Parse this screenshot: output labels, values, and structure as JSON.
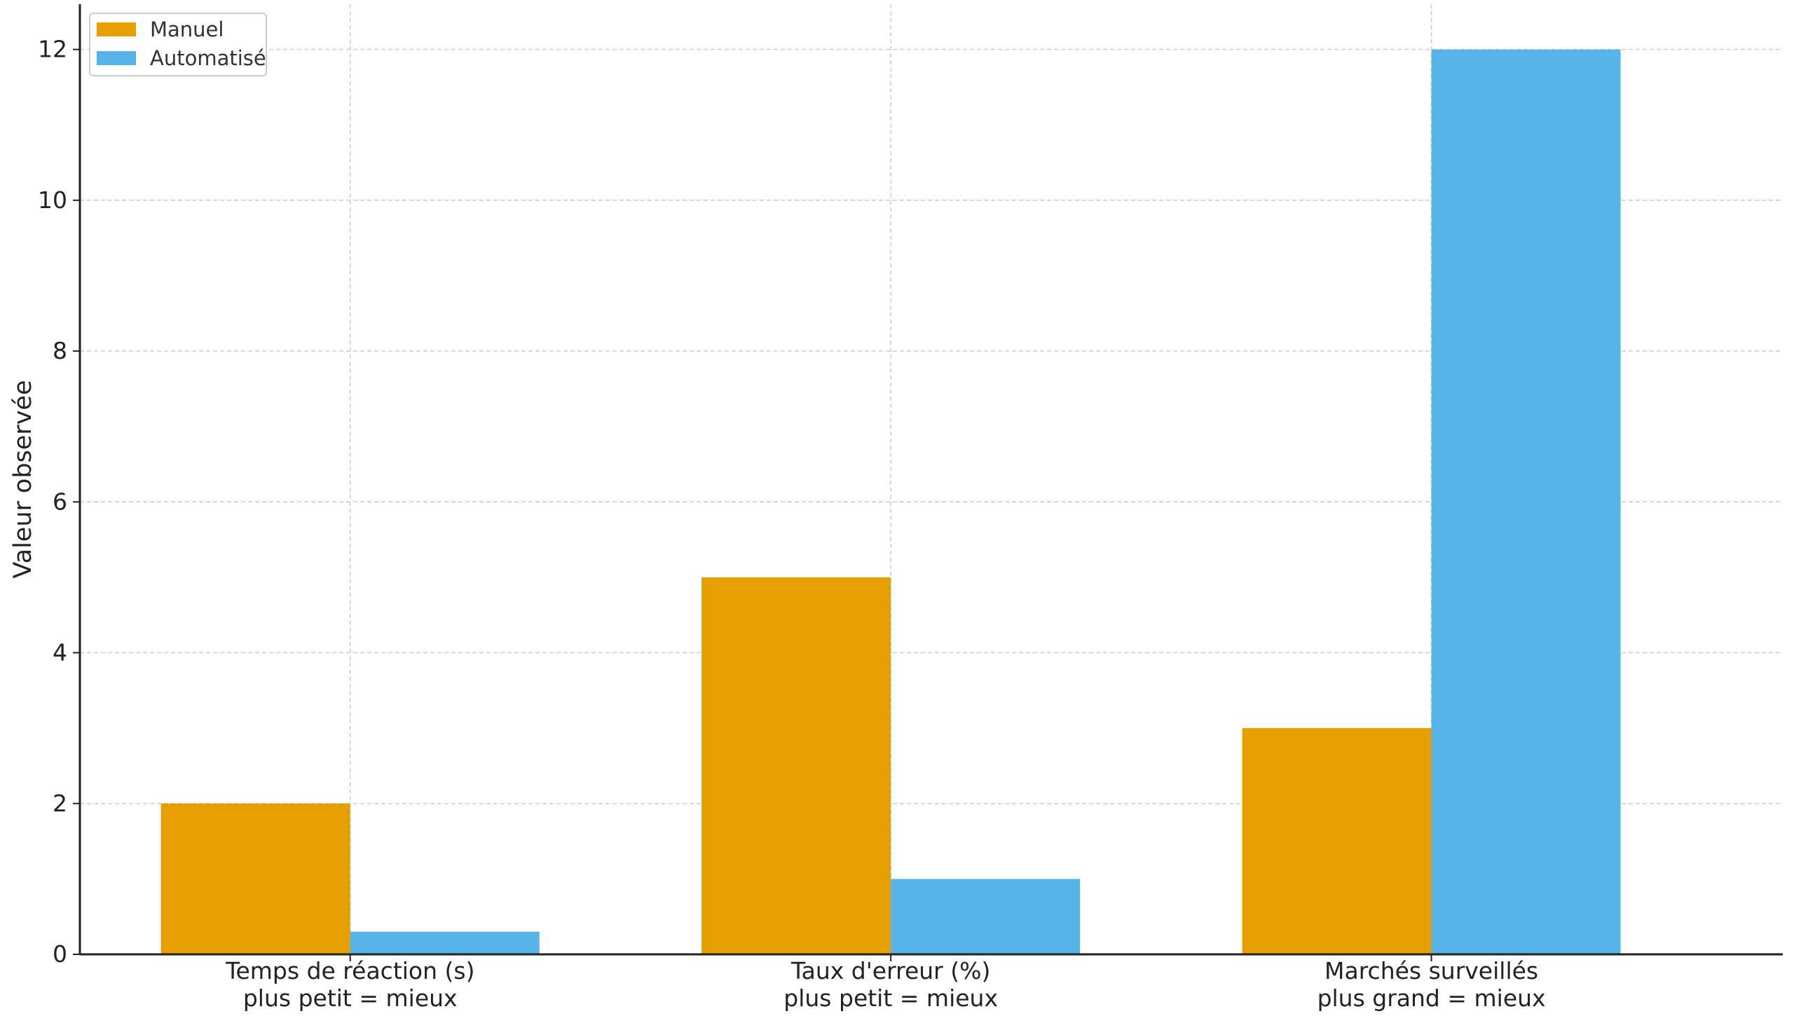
{
  "chart_data": {
    "type": "bar",
    "categories": [
      [
        "Temps de réaction (s)",
        "plus petit = mieux"
      ],
      [
        "Taux d'erreur (%)",
        "plus petit = mieux"
      ],
      [
        "Marchés surveillés",
        "plus grand = mieux"
      ]
    ],
    "series": [
      {
        "name": "Manuel",
        "values": [
          2,
          5,
          3
        ],
        "color": "#E69F00"
      },
      {
        "name": "Automatisé",
        "values": [
          0.3,
          1,
          12
        ],
        "color": "#56B4E9"
      }
    ],
    "title": "",
    "xlabel": "",
    "ylabel": "Valeur observée",
    "ylim": [
      0,
      12.6
    ],
    "yticks": [
      0,
      2,
      4,
      6,
      8,
      10,
      12
    ],
    "grid": true,
    "legend_position": "top-left"
  }
}
